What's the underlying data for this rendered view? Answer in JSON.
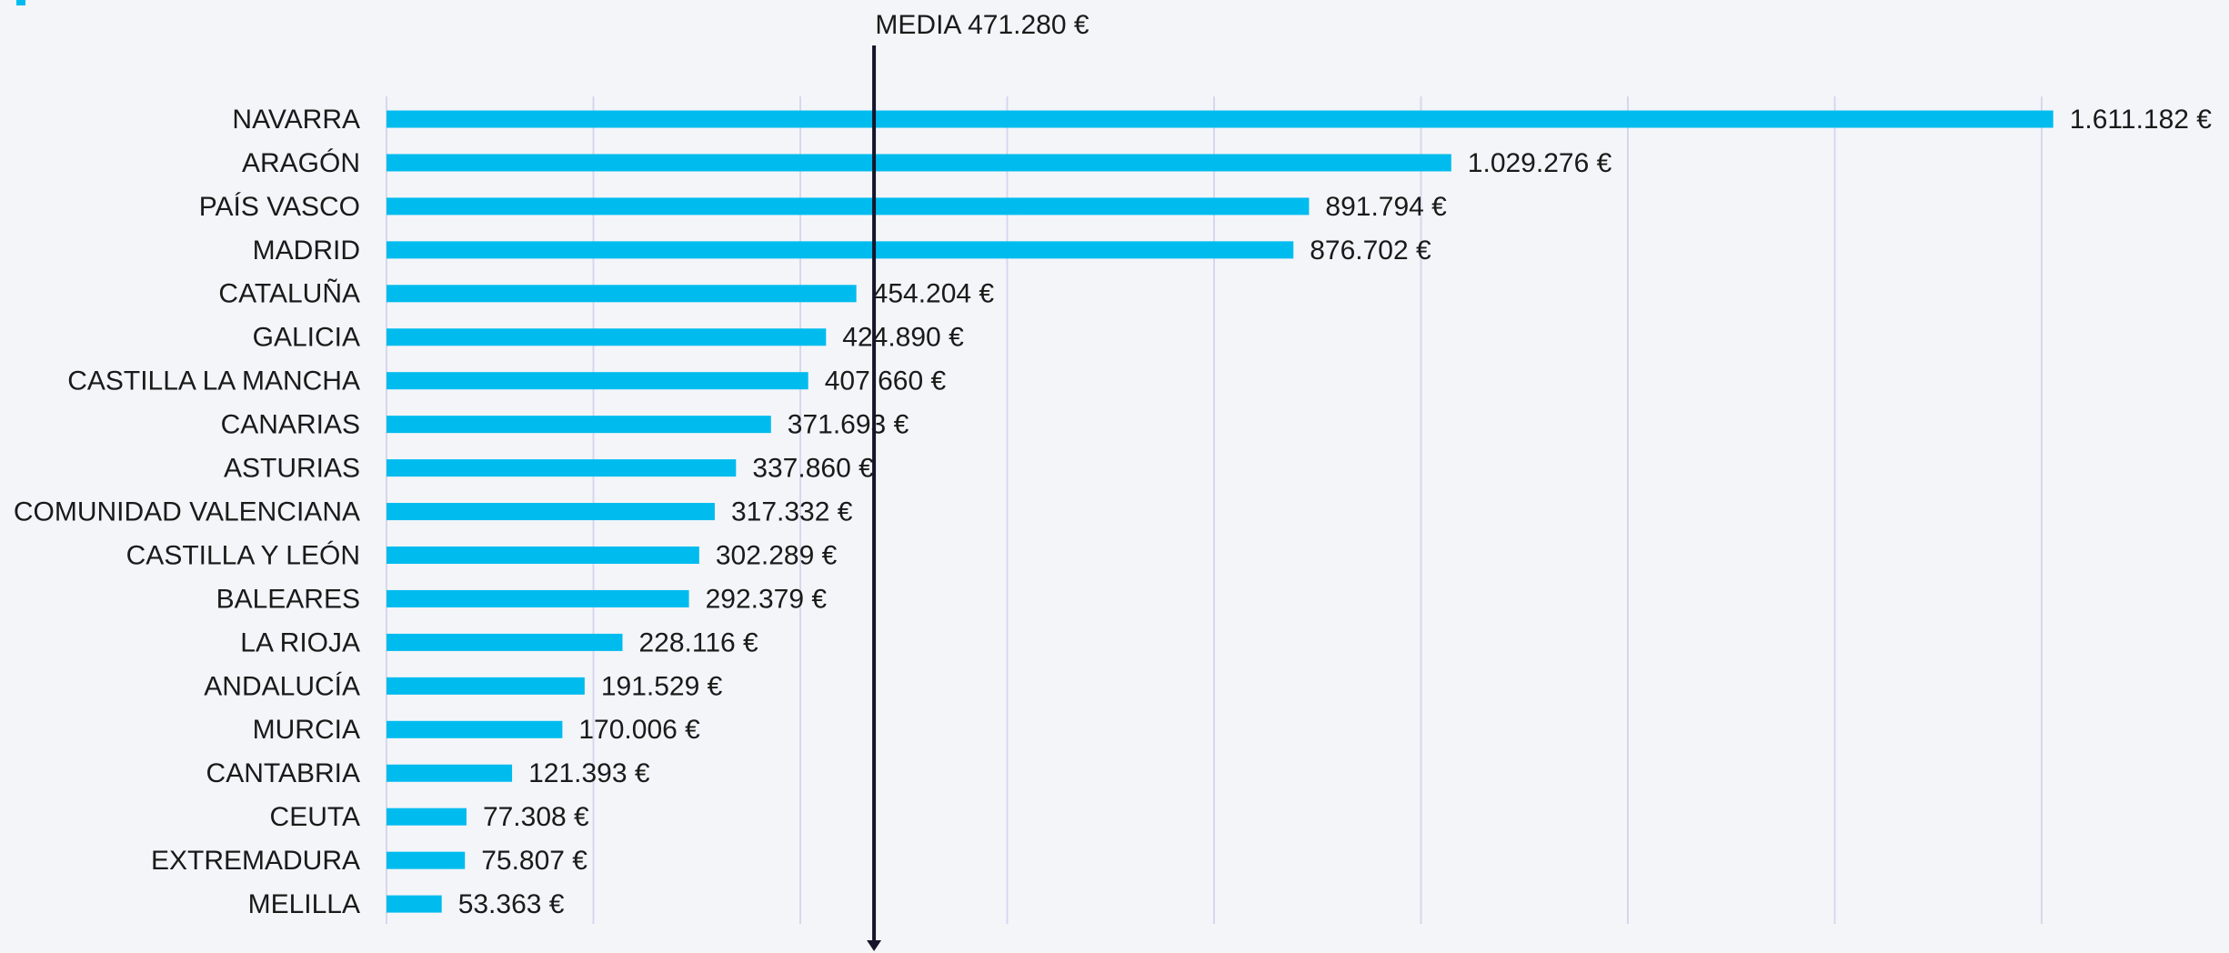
{
  "chart_data": {
    "type": "bar",
    "orientation": "horizontal",
    "categories": [
      "NAVARRA",
      "ARAGÓN",
      "PAÍS VASCO",
      "MADRID",
      "CATALUÑA",
      "GALICIA",
      "CASTILLA LA MANCHA",
      "CANARIAS",
      "ASTURIAS",
      "COMUNIDAD VALENCIANA",
      "CASTILLA Y LEÓN",
      "BALEARES",
      "LA RIOJA",
      "ANDALUCÍA",
      "MURCIA",
      "CANTABRIA",
      "CEUTA",
      "EXTREMADURA",
      "MELILLA"
    ],
    "values": [
      1611182,
      1029276,
      891794,
      876702,
      454204,
      424890,
      407660,
      371693,
      337860,
      317332,
      302289,
      292379,
      228116,
      191529,
      170006,
      121393,
      77308,
      75807,
      53363
    ],
    "value_labels": [
      "1.611.182 €",
      "1.029.276 €",
      "891.794 €",
      "876.702 €",
      "454.204 €",
      "424.890 €",
      "407.660 €",
      "371.693 €",
      "337.860 €",
      "317.332 €",
      "302.289 €",
      "292.379 €",
      "228.116 €",
      "191.529 €",
      "170.006 €",
      "121.393 €",
      "77.308 €",
      "75.807 €",
      "53.363 €"
    ],
    "color": "#00bcee",
    "xlim": [
      0,
      1600000
    ],
    "xticks": [
      0,
      200000,
      400000,
      600000,
      800000,
      1000000,
      1200000,
      1400000,
      1600000
    ],
    "grid": true,
    "mean": 471280,
    "mean_label": "MEDIA 471.280 €"
  }
}
